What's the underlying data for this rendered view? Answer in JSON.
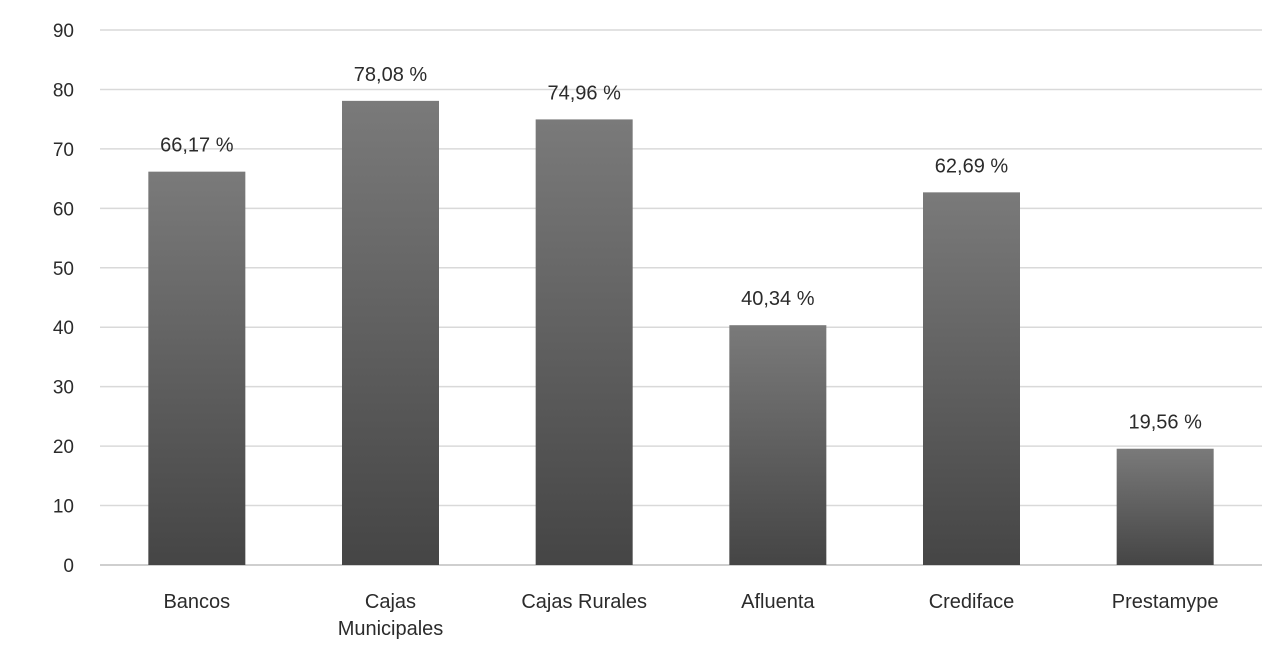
{
  "chart_data": {
    "type": "bar",
    "categories": [
      [
        "Bancos"
      ],
      [
        "Cajas",
        "Municipales"
      ],
      [
        "Cajas Rurales"
      ],
      [
        "Afluenta"
      ],
      [
        "Crediface"
      ],
      [
        "Prestamype"
      ]
    ],
    "values": [
      66.17,
      78.08,
      74.96,
      40.34,
      62.69,
      19.56
    ],
    "data_labels": [
      "66,17 %",
      "78,08 %",
      "74,96 %",
      "40,34 %",
      "62,69 %",
      "19,56 %"
    ],
    "title": "",
    "xlabel": "",
    "ylabel": "",
    "ylim": [
      0,
      90
    ],
    "yticks": [
      0,
      10,
      20,
      30,
      40,
      50,
      60,
      70,
      80,
      90
    ],
    "grid": "horizontal",
    "legend": "none",
    "colors": {
      "bar_top": "#7a7a7a",
      "bar_bottom": "#454545",
      "grid": "#d9d9d9",
      "text": "#2b2b2b"
    }
  }
}
